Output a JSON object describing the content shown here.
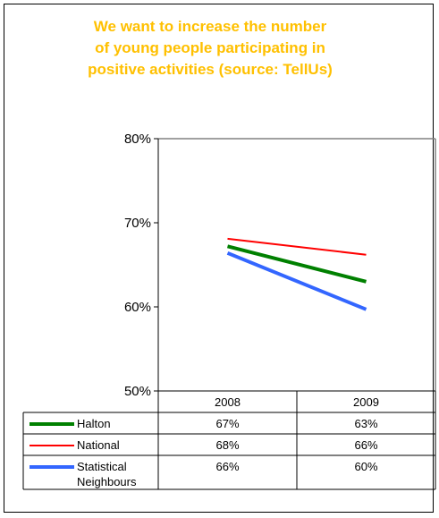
{
  "title": "We want to increase the number\nof young people participating in\npositive activities (source: TellUs)",
  "chart_data": {
    "type": "line",
    "title": "We want to increase the number of young people participating in positive activities (source: TellUs)",
    "x": [
      "2008",
      "2009"
    ],
    "ylim": [
      50,
      80
    ],
    "yticks": [
      50,
      60,
      70,
      80
    ],
    "ytick_labels": [
      "50%",
      "60%",
      "70%",
      "80%"
    ],
    "grid": false,
    "legend": "data-table-below",
    "series": [
      {
        "name": "Halton",
        "values": [
          67.2,
          63.0
        ],
        "labels": [
          "67%",
          "63%"
        ],
        "color": "#008000",
        "width": 4
      },
      {
        "name": "National",
        "values": [
          68.1,
          66.2
        ],
        "labels": [
          "68%",
          "66%"
        ],
        "color": "#ff0000",
        "width": 2
      },
      {
        "name": "Statistical\nNeighbours",
        "values": [
          66.4,
          59.7
        ],
        "labels": [
          "66%",
          "60%"
        ],
        "color": "#3366ff",
        "width": 4
      }
    ]
  }
}
